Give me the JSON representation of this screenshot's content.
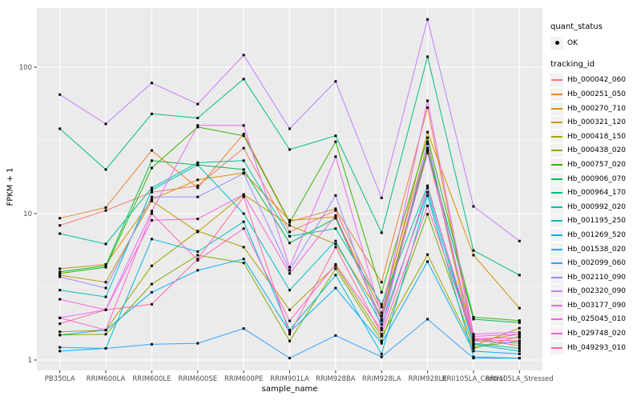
{
  "chart_data": {
    "type": "line",
    "title": "",
    "xlabel": "sample_name",
    "ylabel": "FPKM + 1",
    "y_scale": "log10",
    "grid": {
      "major": true,
      "minor": true,
      "panel_bg": "#EBEBEB",
      "grid_color": "#FFFFFF"
    },
    "axis_tick_label_color": "#4D4D4D",
    "point_color": "#000000",
    "legend_position": "right",
    "x_categories": [
      "PB350LA",
      "RRIM600LA",
      "RRIM600LE",
      "RRIM600SE",
      "RRIM600PE",
      "RRIM901LA",
      "RRIM928BA",
      "RRIM928LA",
      "RRIM928LE",
      "RRII105LA_Control",
      "RRII105LA_Stressed"
    ],
    "y_ticks": [
      {
        "label": "1",
        "value": 1
      },
      {
        "label": "10",
        "value": 10
      },
      {
        "label": "100",
        "value": 100
      }
    ],
    "y_minor": [
      3.162,
      31.62
    ],
    "ylim_display": [
      0.81,
      258
    ],
    "legend": {
      "quant_status_title": "quant_status",
      "quant_status_items": [
        {
          "label": "OK",
          "marker": "black-point"
        }
      ],
      "tracking_id_title": "tracking_id"
    },
    "series": [
      {
        "name": "Hb_000042_060",
        "color": "#F8766D",
        "values": [
          8.3,
          10.5,
          14,
          15.5,
          28,
          7.5,
          10.5,
          2.3,
          30,
          1.35,
          1.5
        ]
      },
      {
        "name": "Hb_000251_050",
        "color": "#EA8331",
        "values": [
          9.3,
          11,
          27,
          15,
          35,
          8.8,
          10.8,
          3.4,
          53,
          1.4,
          1.25
        ]
      },
      {
        "name": "Hb_000270_710",
        "color": "#D89000",
        "values": [
          4.2,
          4.5,
          12.5,
          17,
          19,
          9.0,
          9.5,
          2.1,
          36,
          5.2,
          2.26
        ]
      },
      {
        "name": "Hb_000321_120",
        "color": "#C09B00",
        "values": [
          3.8,
          3.4,
          12.2,
          7.5,
          13.5,
          8.3,
          6.2,
          2.0,
          28,
          1.25,
          1.65
        ]
      },
      {
        "name": "Hb_000418_150",
        "color": "#A3A500",
        "values": [
          1.56,
          1.6,
          4.4,
          7.6,
          5.9,
          2.2,
          4.4,
          1.45,
          5.25,
          1.2,
          1.45
        ]
      },
      {
        "name": "Hb_000438_020",
        "color": "#7CAE00",
        "values": [
          1.48,
          1.5,
          3.3,
          5.2,
          4.6,
          1.35,
          4.2,
          1.35,
          9.9,
          1.22,
          1.35
        ]
      },
      {
        "name": "Hb_000757_020",
        "color": "#39B600",
        "values": [
          3.9,
          4.3,
          20.5,
          39,
          34,
          8.7,
          31,
          2.9,
          33,
          1.96,
          1.86
        ]
      },
      {
        "name": "Hb_000906_070",
        "color": "#00BB4E",
        "values": [
          4.0,
          4.4,
          23,
          21.5,
          20,
          6.3,
          9.3,
          1.9,
          27,
          1.9,
          1.8
        ]
      },
      {
        "name": "Hb_000964_170",
        "color": "#00BF7D",
        "values": [
          38,
          20,
          48,
          45,
          83,
          27.4,
          34,
          7.4,
          118,
          5.6,
          3.8
        ]
      },
      {
        "name": "Hb_000992_020",
        "color": "#00C1A3",
        "values": [
          7.3,
          6.2,
          15,
          22.3,
          23,
          7.0,
          7.9,
          2.4,
          15.5,
          1.3,
          1.2
        ]
      },
      {
        "name": "Hb_001195_250",
        "color": "#00BFC4",
        "values": [
          3.0,
          2.7,
          14.5,
          21.5,
          10,
          3.0,
          6.5,
          1.75,
          14,
          1.28,
          1.15
        ]
      },
      {
        "name": "Hb_001269_520",
        "color": "#00BAE0",
        "values": [
          1.15,
          1.2,
          6.7,
          5.5,
          8.8,
          1.6,
          3.8,
          1.1,
          13.3,
          1.05,
          1.03
        ]
      },
      {
        "name": "Hb_001538_020",
        "color": "#00B0F6",
        "values": [
          1.48,
          1.6,
          2.9,
          4.1,
          4.9,
          1.55,
          3.1,
          1.3,
          4.7,
          1.15,
          1.1
        ]
      },
      {
        "name": "Hb_002099_060",
        "color": "#35A2FF",
        "values": [
          1.22,
          1.2,
          1.28,
          1.3,
          1.64,
          1.03,
          1.47,
          1.05,
          1.9,
          1.03,
          1.03
        ]
      },
      {
        "name": "Hb_002110_090",
        "color": "#9590FF",
        "values": [
          3.7,
          3.1,
          13,
          13,
          18.8,
          4.1,
          13.3,
          1.65,
          31,
          1.35,
          1.3
        ]
      },
      {
        "name": "Hb_002320_090",
        "color": "#C77CFF",
        "values": [
          65,
          41,
          78,
          56,
          121,
          38,
          80,
          12.8,
          212,
          11.2,
          6.5
        ]
      },
      {
        "name": "Hb_003177_090",
        "color": "#E76BF3",
        "values": [
          1.94,
          2.2,
          10.4,
          40,
          40,
          4.3,
          24.5,
          2.0,
          59,
          1.5,
          1.55
        ]
      },
      {
        "name": "Hb_025045_010",
        "color": "#FA62DB",
        "values": [
          2.6,
          2.2,
          9.0,
          9.2,
          13.5,
          3.9,
          9.7,
          1.85,
          26,
          1.45,
          1.5
        ]
      },
      {
        "name": "Hb_029748_020",
        "color": "#FF61C9",
        "values": [
          1.94,
          1.6,
          10.0,
          4.8,
          7.9,
          1.85,
          4.5,
          1.6,
          15,
          1.4,
          1.42
        ]
      },
      {
        "name": "Hb_049293_010",
        "color": "#FF67AC",
        "values": [
          1.77,
          2.2,
          2.4,
          4.9,
          13,
          1.5,
          5.9,
          1.5,
          11.3,
          1.38,
          1.35
        ]
      }
    ]
  }
}
